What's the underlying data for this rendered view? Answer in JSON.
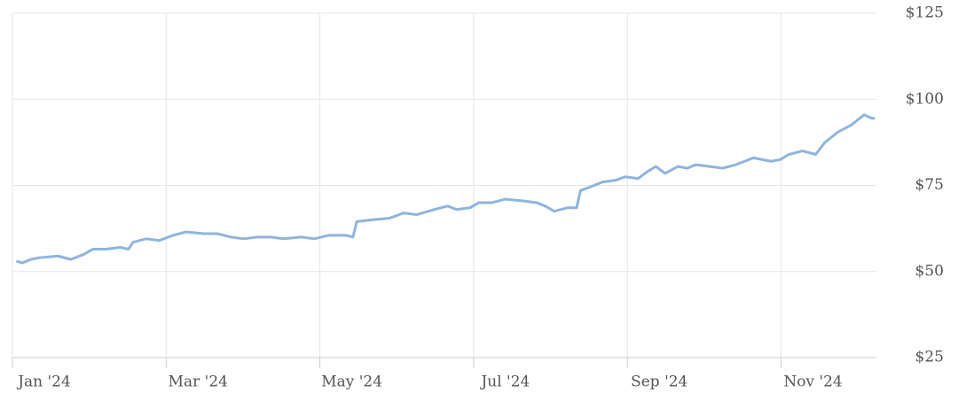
{
  "chart_data": {
    "type": "line",
    "x": [
      0.05,
      0.13,
      0.24,
      0.35,
      0.59,
      0.76,
      0.93,
      1.05,
      1.22,
      1.4,
      1.51,
      1.57,
      1.74,
      1.91,
      2.09,
      2.26,
      2.49,
      2.66,
      2.84,
      3.01,
      3.18,
      3.36,
      3.53,
      3.76,
      3.93,
      4.11,
      4.34,
      4.43,
      4.48,
      4.68,
      4.91,
      5.09,
      5.26,
      5.49,
      5.66,
      5.78,
      5.95,
      6.07,
      6.24,
      6.41,
      6.64,
      6.82,
      6.93,
      7.05,
      7.22,
      7.34,
      7.39,
      7.51,
      7.68,
      7.85,
      7.97,
      8.14,
      8.26,
      8.37,
      8.49,
      8.66,
      8.78,
      8.89,
      9.07,
      9.24,
      9.41,
      9.64,
      9.87,
      9.99,
      10.1,
      10.28,
      10.45,
      10.57,
      10.74,
      10.91,
      11.08,
      11.18,
      11.22
    ],
    "values": [
      53,
      52.5,
      53.5,
      54,
      54.5,
      53.5,
      55,
      56.5,
      56.5,
      57,
      56.5,
      58.5,
      59.5,
      59,
      60.5,
      61.5,
      61,
      61,
      60,
      59.5,
      60,
      60,
      59.5,
      60,
      59.5,
      60.5,
      60.5,
      60,
      64.5,
      65,
      65.5,
      67,
      66.5,
      68,
      69,
      68,
      68.5,
      70,
      70,
      71,
      70.5,
      70,
      69,
      67.5,
      68.5,
      68.5,
      73.5,
      74.5,
      76,
      76.5,
      77.5,
      77,
      79,
      80.5,
      78.5,
      80.5,
      80,
      81,
      80.5,
      80,
      81,
      83,
      82,
      82.5,
      84,
      85,
      84,
      87.5,
      90.5,
      92.5,
      95.5,
      94.5,
      94.5
    ],
    "color": "#8fb4de",
    "xlim": [
      0,
      11.24
    ],
    "xticks": [
      {
        "value": 0,
        "label": "Jan '24"
      },
      {
        "value": 2,
        "label": "Mar '24"
      },
      {
        "value": 4,
        "label": "May '24"
      },
      {
        "value": 6,
        "label": "Jul '24"
      },
      {
        "value": 8,
        "label": "Sep '24"
      },
      {
        "value": 10,
        "label": "Nov '24"
      }
    ],
    "ylim": [
      25,
      125
    ],
    "yticks": [
      {
        "value": 25,
        "label": "$25"
      },
      {
        "value": 50,
        "label": "$50"
      },
      {
        "value": 75,
        "label": "$75"
      },
      {
        "value": 100,
        "label": "$100"
      },
      {
        "value": 125,
        "label": "$125"
      }
    ],
    "grid": true
  }
}
